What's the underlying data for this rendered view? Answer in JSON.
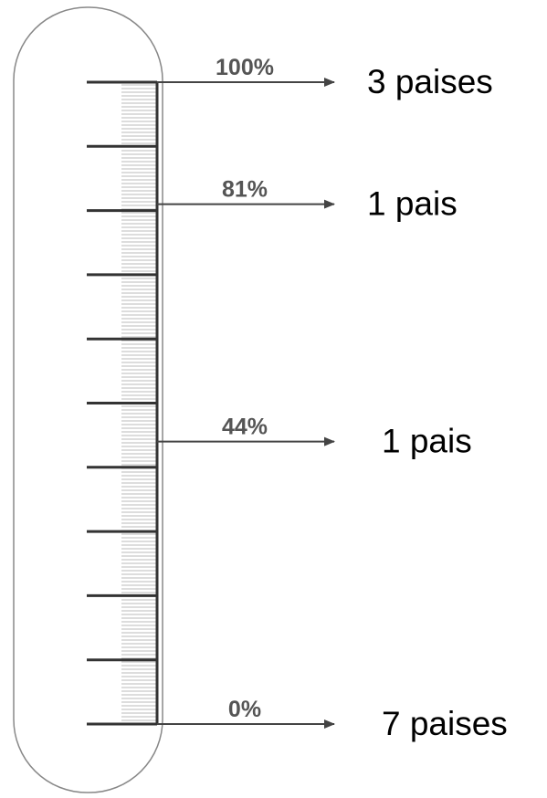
{
  "chart_data": {
    "type": "thermometer",
    "ylim": [
      0,
      100
    ],
    "yticks": [
      0,
      10,
      20,
      30,
      40,
      50,
      60,
      70,
      80,
      90,
      100
    ],
    "values": [
      100,
      81,
      44,
      0
    ],
    "value_labels": [
      "100%",
      "81%",
      "44%",
      "0%"
    ],
    "categories": [
      "3 paises",
      "1 pais",
      "1 pais",
      "7 paises"
    ]
  }
}
